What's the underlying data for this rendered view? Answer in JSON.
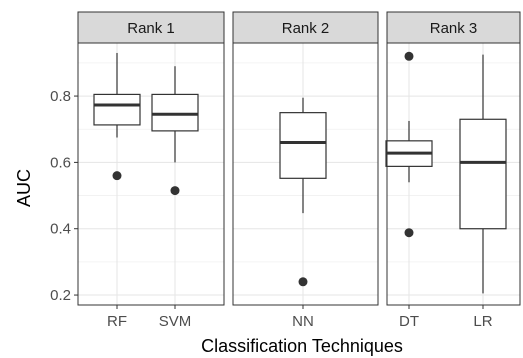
{
  "chart_data": {
    "type": "boxplot",
    "xlabel": "Classification Techniques",
    "ylabel": "AUC",
    "ylim": [
      0.17,
      0.96
    ],
    "yticks": [
      0.2,
      0.4,
      0.6,
      0.8
    ],
    "ytick_labels": [
      "0.2",
      "0.4",
      "0.6",
      "0.8"
    ],
    "grid": true,
    "facets": [
      {
        "label": "Rank 1",
        "groups": [
          {
            "name": "RF",
            "whisker_low": 0.675,
            "q1": 0.713,
            "median": 0.773,
            "q3": 0.805,
            "whisker_high": 0.93,
            "outliers": [
              0.56
            ]
          },
          {
            "name": "SVM",
            "whisker_low": 0.6,
            "q1": 0.695,
            "median": 0.745,
            "q3": 0.805,
            "whisker_high": 0.89,
            "outliers": [
              0.515
            ]
          }
        ]
      },
      {
        "label": "Rank 2",
        "groups": [
          {
            "name": "NN",
            "whisker_low": 0.447,
            "q1": 0.552,
            "median": 0.66,
            "q3": 0.75,
            "whisker_high": 0.795,
            "outliers": [
              0.24
            ]
          }
        ]
      },
      {
        "label": "Rank 3",
        "groups": [
          {
            "name": "DT",
            "whisker_low": 0.54,
            "q1": 0.588,
            "median": 0.628,
            "q3": 0.665,
            "whisker_high": 0.725,
            "outliers": [
              0.92,
              0.388
            ]
          },
          {
            "name": "LR",
            "whisker_low": 0.205,
            "q1": 0.4,
            "median": 0.6,
            "q3": 0.73,
            "whisker_high": 0.925,
            "outliers": []
          }
        ]
      }
    ]
  }
}
